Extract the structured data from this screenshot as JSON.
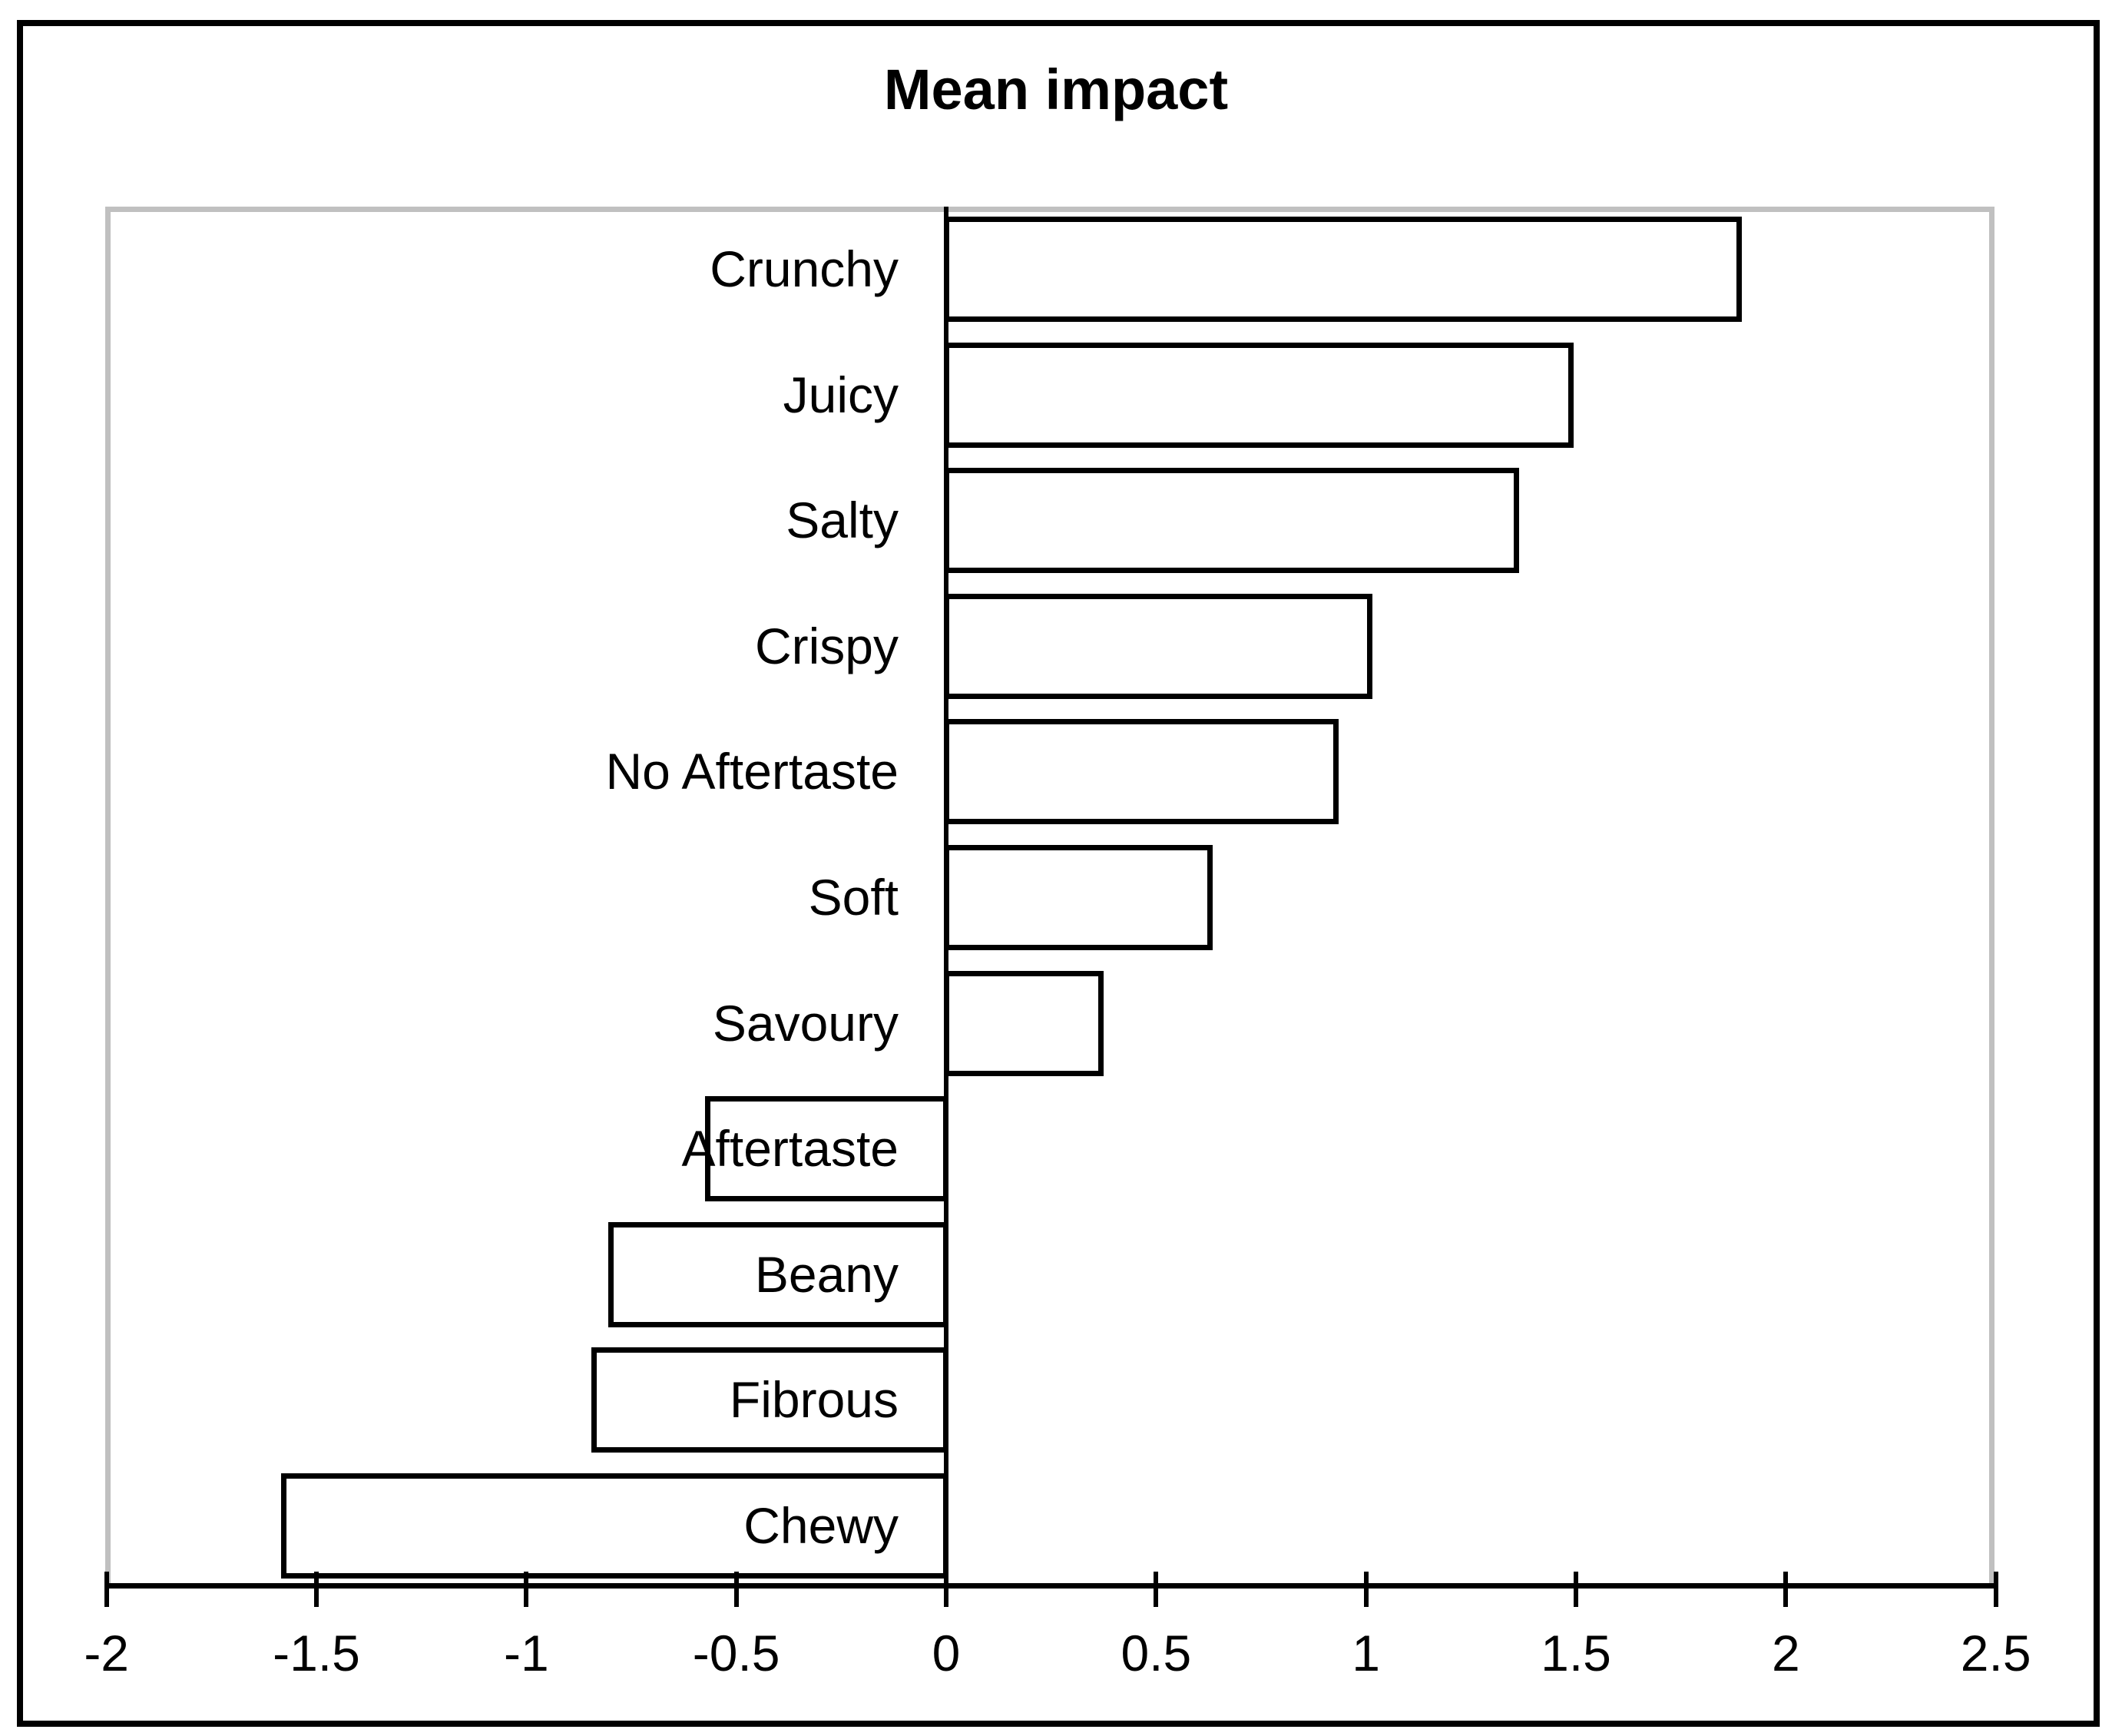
{
  "title": "Mean impact",
  "colors": {
    "background": "#ffffff",
    "bar_fill": "#ffffff",
    "bar_border": "#000000",
    "plot_border": "#c0c0c0",
    "axis": "#000000",
    "text": "#000000",
    "frame": "#000000"
  },
  "chart_data": {
    "type": "bar",
    "orientation": "horizontal",
    "title": "Mean impact",
    "xlabel": "",
    "ylabel": "",
    "categories": [
      "Crunchy",
      "Juicy",
      "Salty",
      "Crispy",
      "No Aftertaste",
      "Soft",
      "Savoury",
      "Aftertaste",
      "Beany",
      "Fibrous",
      "Chewy"
    ],
    "values": [
      1.9,
      1.5,
      1.37,
      1.02,
      0.94,
      0.64,
      0.38,
      -0.58,
      -0.81,
      -0.85,
      -1.59
    ],
    "xlim": [
      -2,
      2.5
    ],
    "x_ticks": [
      -2,
      -1.5,
      -1,
      -0.5,
      0,
      0.5,
      1,
      1.5,
      2,
      2.5
    ],
    "x_tick_labels": [
      "-2",
      "-1.5",
      "-1",
      "-0.5",
      "0",
      "0.5",
      "1",
      "1.5",
      "2",
      "2.5"
    ],
    "grid": false,
    "legend": false,
    "tick_style": "cross",
    "category_labels_position": "right-aligned-at-zero-axis"
  }
}
